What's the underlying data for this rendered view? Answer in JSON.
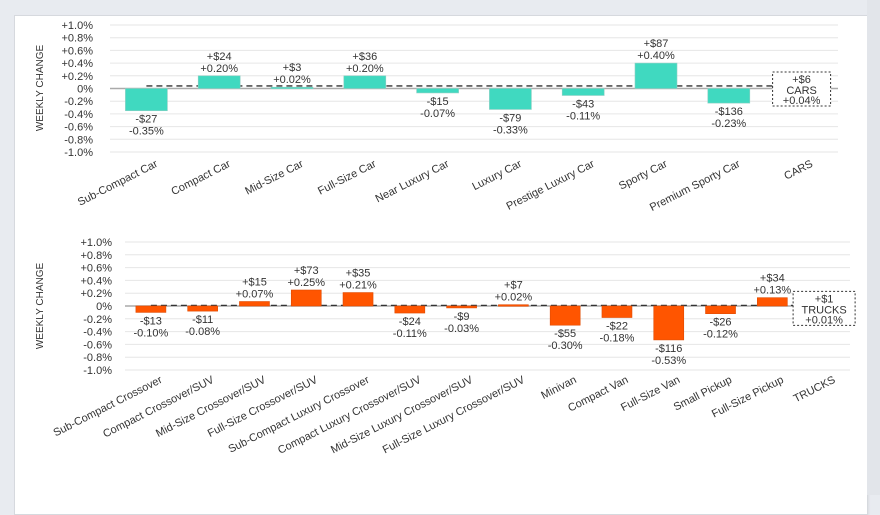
{
  "chart_data": [
    {
      "type": "bar",
      "title": "",
      "xlabel": "",
      "ylabel": "WEEKLY CHANGE",
      "ylim": [
        -1.0,
        1.0
      ],
      "yticks": [
        "+1.0%",
        "+0.8%",
        "+0.6%",
        "+0.4%",
        "+0.2%",
        "0%",
        "-0.2%",
        "-0.4%",
        "-0.6%",
        "-0.8%",
        "-1.0%"
      ],
      "grid": true,
      "bar_color": "#40d9c0",
      "categories": [
        "Sub-Compact Car",
        "Compact Car",
        "Mid-Size Car",
        "Full-Size Car",
        "Near Luxury Car",
        "Luxury Car",
        "Prestige Luxury Car",
        "Sporty Car",
        "Premium Sporty Car",
        "CARS"
      ],
      "values_pct": [
        -0.35,
        0.2,
        0.02,
        0.2,
        -0.07,
        -0.33,
        -0.11,
        0.4,
        -0.23,
        0.04
      ],
      "values_dollar": [
        "-$27",
        "+$24",
        "+$3",
        "+$36",
        "-$15",
        "-$79",
        "-$43",
        "+$87",
        "-$136",
        "+$6"
      ],
      "pct_labels": [
        "-0.35%",
        "+0.20%",
        "+0.02%",
        "+0.20%",
        "-0.07%",
        "-0.33%",
        "-0.11%",
        "+0.40%",
        "-0.23%",
        "+0.04%"
      ],
      "reference_line_pct": 0.04,
      "total": {
        "name": "CARS",
        "dollar": "+$6",
        "pct": "+0.04%"
      }
    },
    {
      "type": "bar",
      "title": "",
      "xlabel": "",
      "ylabel": "WEEKLY CHANGE",
      "ylim": [
        -1.0,
        1.0
      ],
      "yticks": [
        "+1.0%",
        "+0.8%",
        "+0.6%",
        "+0.4%",
        "+0.2%",
        "0%",
        "-0.2%",
        "-0.4%",
        "-0.6%",
        "-0.8%",
        "-1.0%"
      ],
      "grid": true,
      "bar_color": "#ff5500",
      "categories": [
        "Sub-Compact Crossover",
        "Compact Crossover/SUV",
        "Mid-Size Crossover/SUV",
        "Full-Size Crossover/SUV",
        "Sub-Compact Luxury Crossover",
        "Compact Luxury Crossover/SUV",
        "Mid-Size Luxury Crossover/SUV",
        "Full-Size Luxury Crossover/SUV",
        "Minivan",
        "Compact Van",
        "Full-Size Van",
        "Small Pickup",
        "Full-Size Pickup",
        "TRUCKS"
      ],
      "values_pct": [
        -0.1,
        -0.08,
        0.07,
        0.25,
        0.21,
        -0.11,
        -0.03,
        0.02,
        -0.3,
        -0.18,
        -0.53,
        -0.12,
        0.13,
        0.01
      ],
      "values_dollar": [
        "-$13",
        "-$11",
        "+$15",
        "+$73",
        "+$35",
        "-$24",
        "-$9",
        "+$7",
        "-$55",
        "-$22",
        "-$116",
        "-$26",
        "+$34",
        "+$1"
      ],
      "pct_labels": [
        "-0.10%",
        "-0.08%",
        "+0.07%",
        "+0.25%",
        "+0.21%",
        "-0.11%",
        "-0.03%",
        "+0.02%",
        "-0.30%",
        "-0.18%",
        "-0.53%",
        "-0.12%",
        "+0.13%",
        "+0.01%"
      ],
      "reference_line_pct": 0.01,
      "total": {
        "name": "TRUCKS",
        "dollar": "+$1",
        "pct": "+0.01%"
      }
    }
  ]
}
